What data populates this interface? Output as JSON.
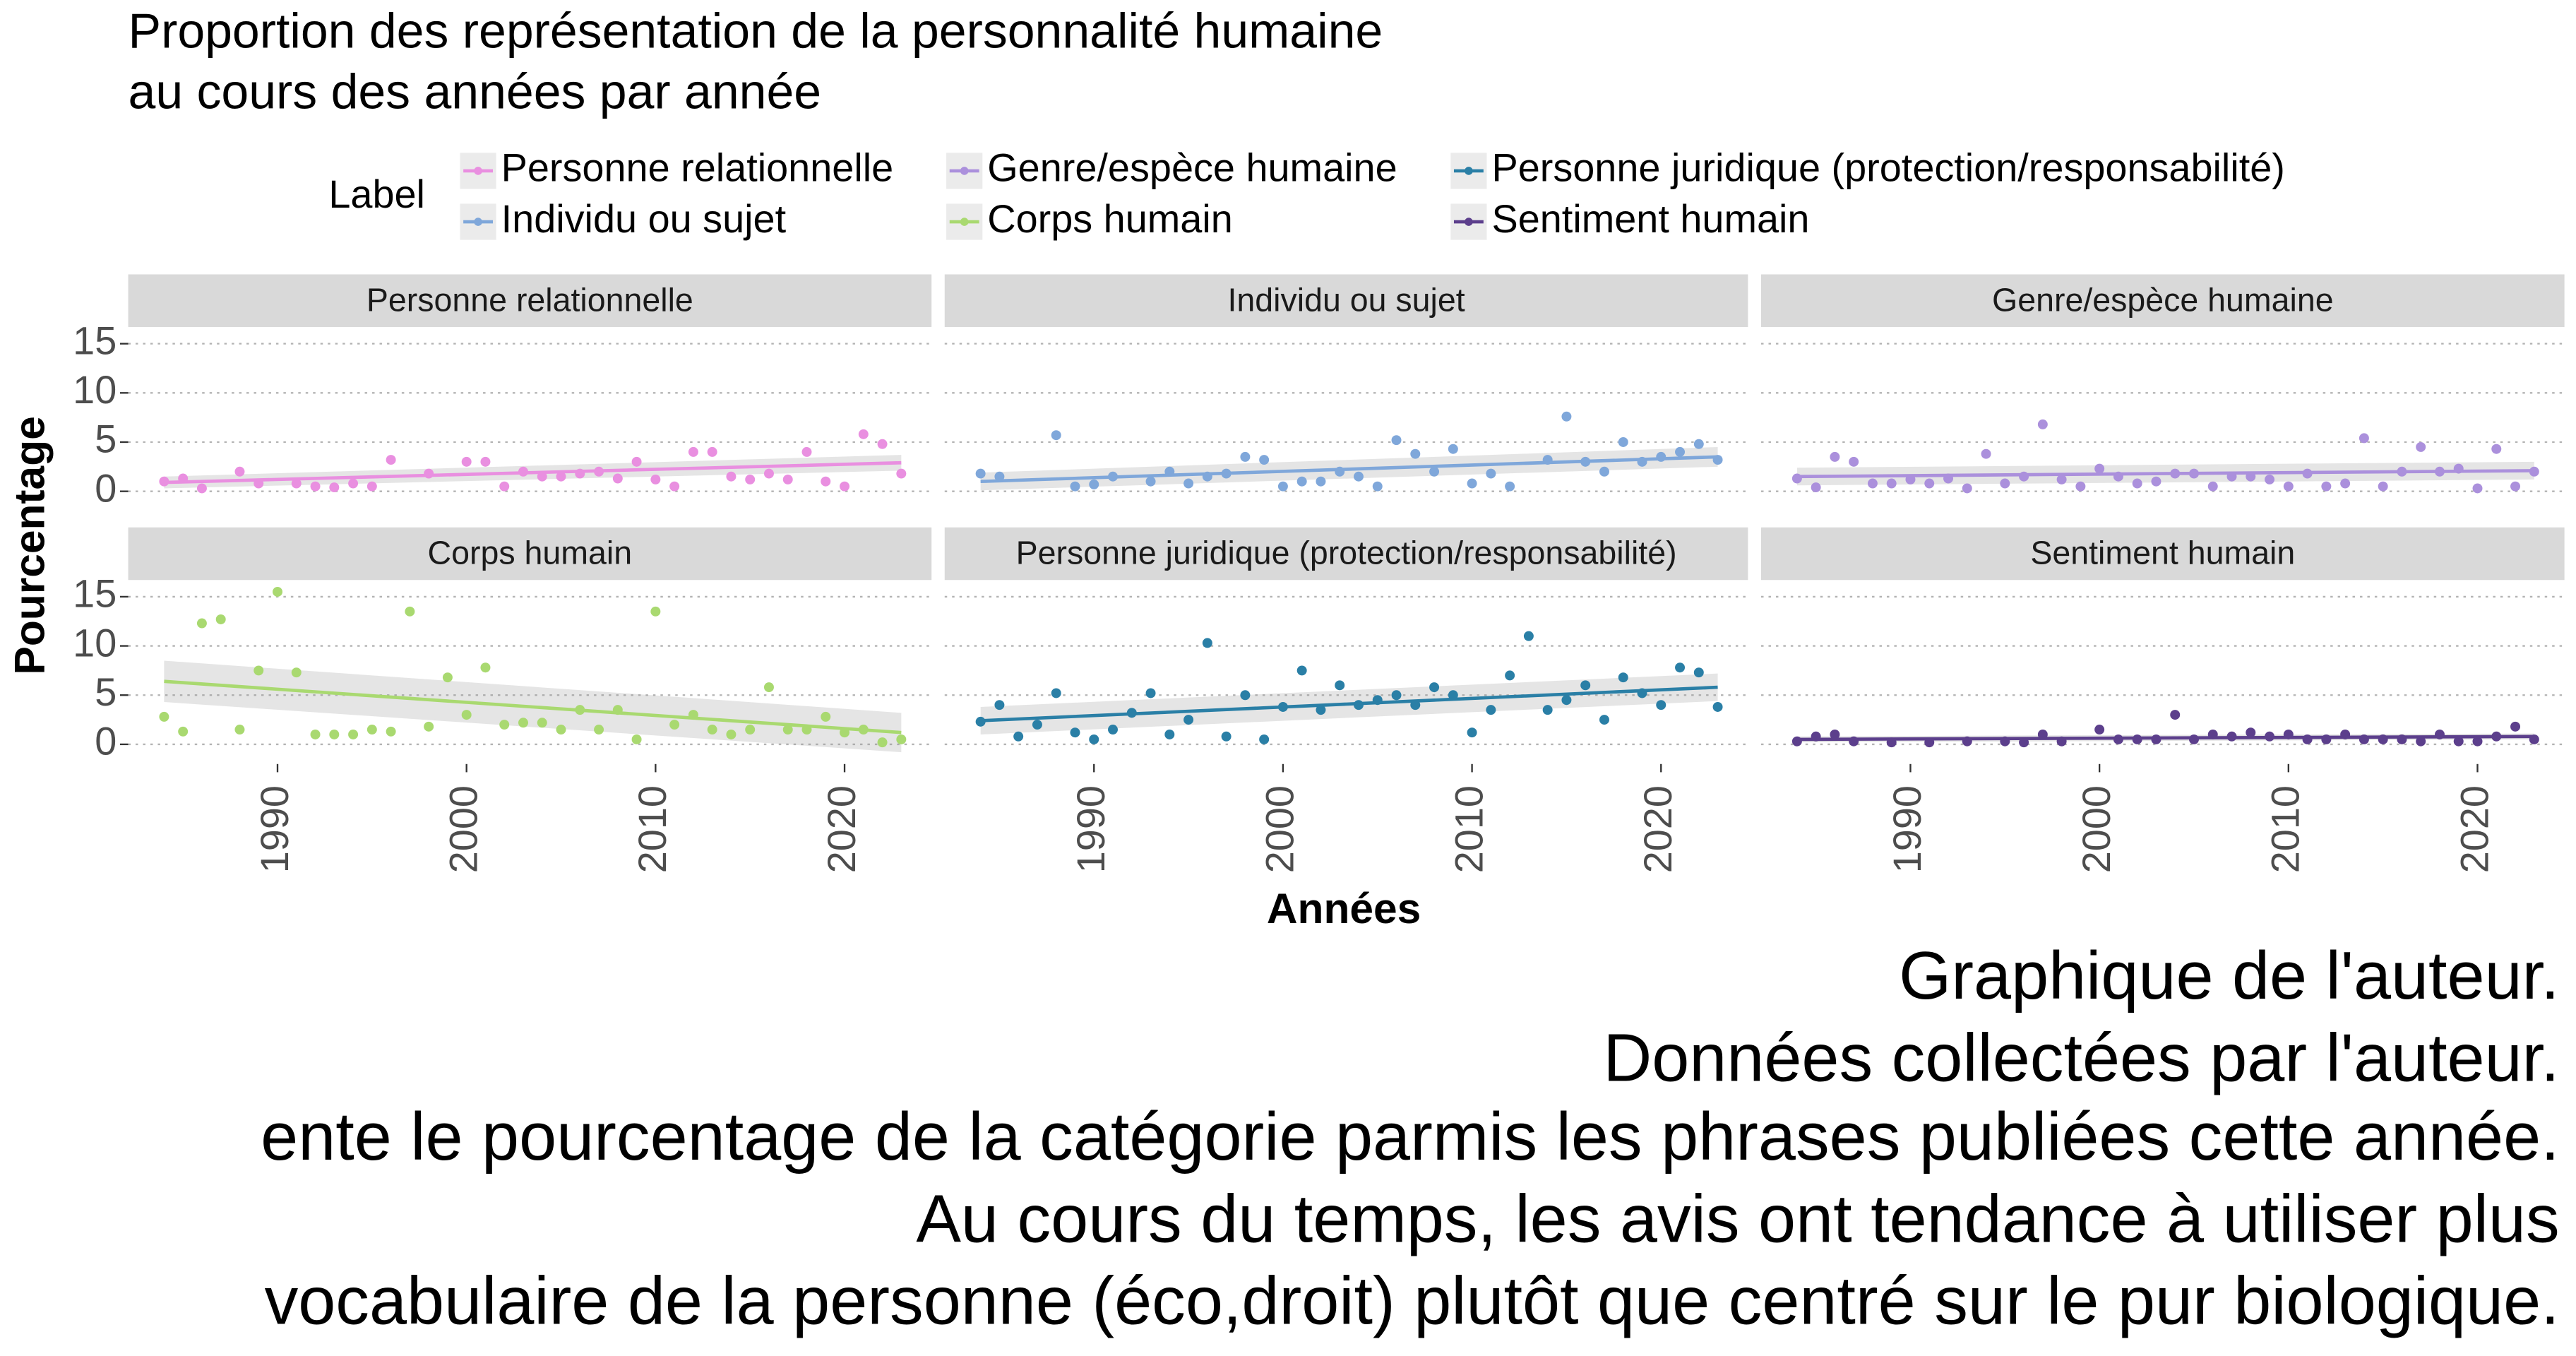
{
  "chart_data": {
    "type": "scatter",
    "title": [
      "Proportion des représentation de la personnalité humaine",
      "au cours des années par année"
    ],
    "xlabel": "Années",
    "ylabel": "Pourcentage",
    "legend_title": "Label",
    "xlim": [
      1982.1,
      2024.6
    ],
    "xticks": [
      1990,
      2000,
      2010,
      2020
    ],
    "ylim": [
      -2,
      16.7
    ],
    "yticks": [
      0,
      5,
      10,
      15
    ],
    "grid": true,
    "facets": [
      {
        "name": "Personne relationnelle",
        "color": "#e98fe0",
        "x": [
          1984,
          1985,
          1986,
          1988,
          1989,
          1991,
          1992,
          1993,
          1994,
          1995,
          1996,
          1998,
          2000,
          2001,
          2002,
          2003,
          2004,
          2005,
          2006,
          2007,
          2008,
          2009,
          2010,
          2011,
          2012,
          2013,
          2014,
          2015,
          2016,
          2017,
          2018,
          2019,
          2020,
          2021,
          2022,
          2023
        ],
        "values": [
          1.0,
          1.3,
          0.3,
          2.0,
          0.8,
          0.8,
          0.5,
          0.4,
          0.8,
          0.5,
          3.2,
          1.8,
          3.0,
          3.0,
          0.5,
          2.0,
          1.5,
          1.5,
          1.8,
          2.0,
          1.3,
          3.0,
          1.2,
          0.5,
          4.0,
          4.0,
          1.5,
          1.2,
          1.8,
          1.2,
          4.0,
          1.0,
          0.5,
          5.8,
          4.8,
          1.8
        ],
        "trend": {
          "x": [
            1984,
            2023
          ],
          "values": [
            0.9,
            2.9
          ]
        },
        "ci": {
          "lower": [
            0.3,
            2.1
          ],
          "upper": [
            1.5,
            3.7
          ]
        }
      },
      {
        "name": "Individu ou sujet",
        "color": "#7fa7da",
        "x": [
          1984,
          1985,
          1988,
          1989,
          1990,
          1991,
          1993,
          1994,
          1995,
          1996,
          1997,
          1998,
          1999,
          2000,
          2001,
          2002,
          2003,
          2004,
          2005,
          2006,
          2007,
          2008,
          2009,
          2010,
          2011,
          2012,
          2014,
          2015,
          2016,
          2017,
          2018,
          2019,
          2020,
          2021,
          2022,
          2023
        ],
        "values": [
          1.8,
          1.5,
          5.7,
          0.5,
          0.7,
          1.5,
          1.0,
          2.0,
          0.8,
          1.5,
          1.8,
          3.5,
          3.2,
          0.5,
          1.0,
          1.0,
          2.0,
          1.5,
          0.5,
          5.2,
          3.8,
          2.0,
          4.3,
          0.8,
          1.8,
          0.5,
          3.2,
          7.6,
          3.0,
          2.0,
          5.0,
          3.0,
          3.5,
          4.0,
          4.8,
          3.2
        ],
        "trend": {
          "x": [
            1984,
            2023
          ],
          "values": [
            1.0,
            3.5
          ]
        },
        "ci": {
          "lower": [
            0.1,
            2.5
          ],
          "upper": [
            1.9,
            4.5
          ]
        }
      },
      {
        "name": "Genre/espèce humaine",
        "color": "#ab90dc",
        "x": [
          1984,
          1985,
          1986,
          1987,
          1988,
          1989,
          1990,
          1991,
          1992,
          1993,
          1994,
          1995,
          1996,
          1997,
          1998,
          1999,
          2000,
          2001,
          2002,
          2003,
          2004,
          2005,
          2006,
          2007,
          2008,
          2009,
          2010,
          2011,
          2012,
          2013,
          2014,
          2015,
          2016,
          2017,
          2018,
          2019,
          2020,
          2021,
          2022,
          2023
        ],
        "values": [
          1.3,
          0.4,
          3.5,
          3.0,
          0.8,
          0.8,
          1.2,
          0.8,
          1.3,
          0.3,
          3.8,
          0.8,
          1.5,
          6.8,
          1.2,
          0.5,
          2.3,
          1.5,
          0.8,
          1.0,
          1.8,
          1.8,
          0.5,
          1.5,
          1.5,
          1.2,
          0.5,
          1.8,
          0.5,
          0.8,
          5.4,
          0.5,
          2.0,
          4.5,
          2.0,
          2.3,
          0.3,
          4.3,
          0.5,
          2.0
        ],
        "trend": {
          "x": [
            1984,
            2023
          ],
          "values": [
            1.5,
            2.1
          ]
        },
        "ci": {
          "lower": [
            0.6,
            1.2
          ],
          "upper": [
            2.4,
            3.0
          ]
        }
      },
      {
        "name": "Corps humain",
        "color": "#a9d970",
        "x": [
          1984,
          1985,
          1986,
          1987,
          1988,
          1989,
          1990,
          1991,
          1992,
          1993,
          1994,
          1995,
          1996,
          1997,
          1998,
          1999,
          2000,
          2001,
          2002,
          2003,
          2004,
          2005,
          2006,
          2007,
          2008,
          2009,
          2010,
          2011,
          2012,
          2013,
          2014,
          2015,
          2016,
          2017,
          2018,
          2019,
          2020,
          2021,
          2022,
          2023
        ],
        "values": [
          2.8,
          1.3,
          12.3,
          12.7,
          1.5,
          7.5,
          15.5,
          7.3,
          1.0,
          1.0,
          1.0,
          1.5,
          1.3,
          13.5,
          1.8,
          6.8,
          3.0,
          7.8,
          2.0,
          2.2,
          2.2,
          1.5,
          3.5,
          1.5,
          3.5,
          0.5,
          13.5,
          2.0,
          3.0,
          1.5,
          1.0,
          1.5,
          5.8,
          1.5,
          1.5,
          2.8,
          1.2,
          1.5,
          0.2,
          0.5
        ],
        "trend": {
          "x": [
            1984,
            2023
          ],
          "values": [
            6.4,
            1.2
          ]
        },
        "ci": {
          "lower": [
            4.3,
            -0.8
          ],
          "upper": [
            8.5,
            3.2
          ]
        }
      },
      {
        "name": "Personne juridique (protection/responsabilité)",
        "color": "#2a7fa6",
        "x": [
          1984,
          1985,
          1986,
          1987,
          1988,
          1989,
          1990,
          1991,
          1992,
          1993,
          1994,
          1995,
          1996,
          1997,
          1998,
          1999,
          2000,
          2001,
          2002,
          2003,
          2004,
          2005,
          2006,
          2007,
          2008,
          2009,
          2010,
          2011,
          2012,
          2013,
          2014,
          2015,
          2016,
          2017,
          2018,
          2019,
          2020,
          2021,
          2022,
          2023
        ],
        "values": [
          2.3,
          4.0,
          0.8,
          2.0,
          5.2,
          1.2,
          0.5,
          1.5,
          3.2,
          5.2,
          1.0,
          2.5,
          10.3,
          0.8,
          5.0,
          0.5,
          3.8,
          7.5,
          3.5,
          6.0,
          4.0,
          4.5,
          5.0,
          4.0,
          5.8,
          5.0,
          1.2,
          3.5,
          7.0,
          11.0,
          3.5,
          4.5,
          6.0,
          2.5,
          6.8,
          5.2,
          4.0,
          7.8,
          7.3,
          3.8
        ],
        "trend": {
          "x": [
            1984,
            2023
          ],
          "values": [
            2.4,
            5.8
          ]
        },
        "ci": {
          "lower": [
            1.0,
            4.4
          ],
          "upper": [
            3.8,
            7.2
          ]
        }
      },
      {
        "name": "Sentiment humain",
        "color": "#5c3f8c",
        "x": [
          1984,
          1985,
          1986,
          1987,
          1989,
          1991,
          1993,
          1995,
          1996,
          1997,
          1998,
          2000,
          2001,
          2002,
          2003,
          2004,
          2005,
          2006,
          2007,
          2008,
          2009,
          2010,
          2011,
          2012,
          2013,
          2014,
          2015,
          2016,
          2017,
          2018,
          2019,
          2020,
          2021,
          2022,
          2023
        ],
        "values": [
          0.3,
          0.8,
          1.0,
          0.3,
          0.2,
          0.2,
          0.3,
          0.3,
          0.2,
          1.0,
          0.3,
          1.5,
          0.5,
          0.5,
          0.5,
          3.0,
          0.5,
          1.0,
          0.8,
          1.2,
          0.8,
          1.0,
          0.5,
          0.5,
          1.0,
          0.5,
          0.5,
          0.5,
          0.3,
          1.0,
          0.3,
          0.3,
          0.8,
          1.8,
          0.5
        ],
        "trend": {
          "x": [
            1984,
            2023
          ],
          "values": [
            0.5,
            0.8
          ]
        },
        "ci": {
          "lower": [
            0.2,
            0.5
          ],
          "upper": [
            0.8,
            1.1
          ]
        }
      }
    ],
    "caption": [
      "Graphique de l'auteur.",
      "Données collectées par l'auteur.",
      "ente le pourcentage de la catégorie parmis les phrases publiées cette année.",
      "Au cours du temps, les avis ont tendance à utiliser plus",
      "vocabulaire de la personne (éco,droit) plutôt que centré sur le pur biologique."
    ]
  }
}
